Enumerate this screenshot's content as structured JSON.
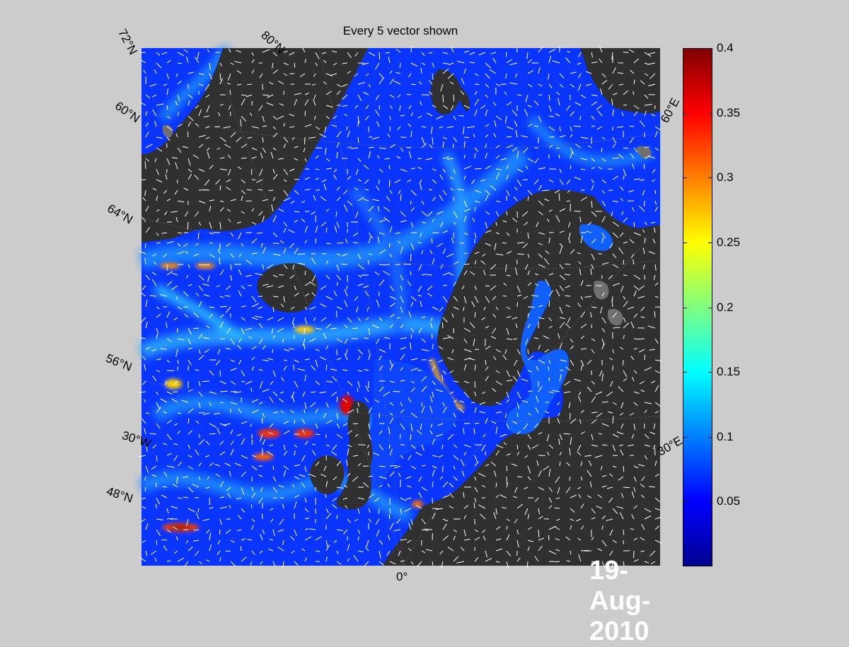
{
  "title": "Every 5 vector shown",
  "date_label": "19-Aug-2010",
  "lat_labels": [
    "72°N",
    "80°N",
    "60°N",
    "64°N",
    "56°N",
    "30°W",
    "48°N"
  ],
  "lon_labels": [
    "60°E",
    "30°E",
    "0°"
  ],
  "colorbar": {
    "ticks": [
      "0.4",
      "0.35",
      "0.3",
      "0.25",
      "0.2",
      "0.15",
      "0.1",
      "0.05"
    ],
    "range": [
      0,
      0.4
    ],
    "colormap": "jet"
  },
  "colors": {
    "ocean_base": "#0a35ff",
    "land": "#303030",
    "ice_land": "#707070",
    "background": "#cccccc"
  }
}
